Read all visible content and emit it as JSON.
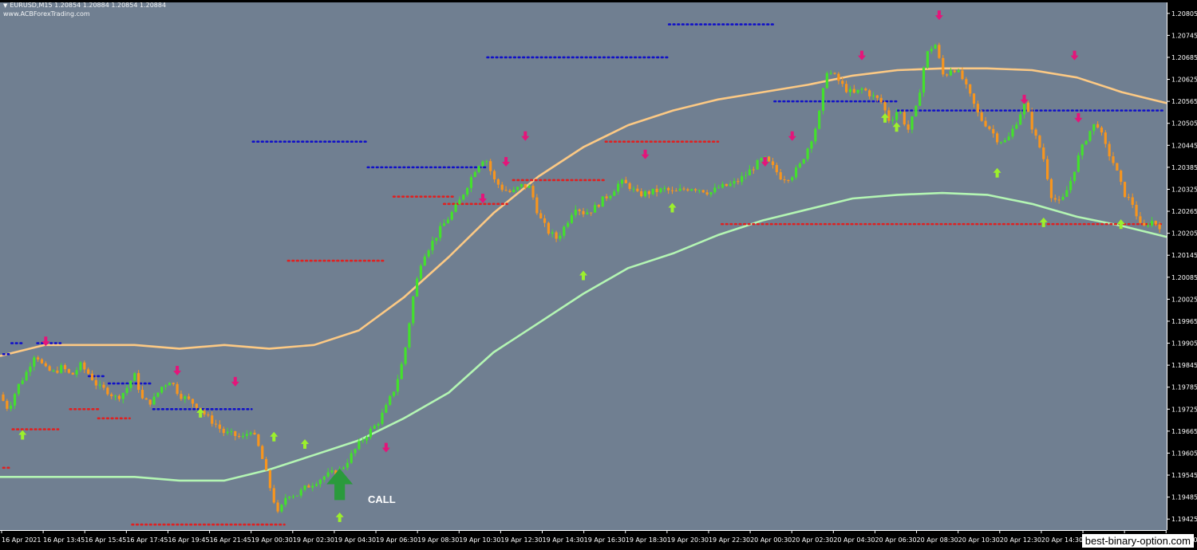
{
  "header": {
    "symbol_line": "EURUSD,M15  1.20854 1.20884 1.20854 1.20884",
    "site": "www.ACBForexTrading.com"
  },
  "signal_label": "CALL",
  "watermark": "best-binary-option.com",
  "colors": {
    "background": "#707f91",
    "axis_background": "#000000",
    "bull_candle": "#43e12c",
    "bear_candle": "#f7951e",
    "upper_band": "#fcc984",
    "lower_band": "#b3f5b3",
    "resistance_dots": "#1010c8",
    "support_dots": "#e02020",
    "sell_arrow": "#e4157a",
    "buy_arrow": "#9cf02c",
    "call_arrow": "#2a9a3c"
  },
  "icons": {
    "sell_signal": "down-arrow-icon",
    "buy_signal": "up-arrow-icon",
    "call_signal": "big-up-arrow-icon"
  },
  "chart_data": {
    "type": "candlestick",
    "symbol": "EURUSD",
    "timeframe": "M15",
    "ylim": [
      1.19395,
      1.20835
    ],
    "y_ticks": [
      "1.20805",
      "1.20745",
      "1.20685",
      "1.20625",
      "1.20565",
      "1.20505",
      "1.20445",
      "1.20385",
      "1.20325",
      "1.20265",
      "1.20205",
      "1.20145",
      "1.20085",
      "1.20025",
      "1.19965",
      "1.19905",
      "1.19845",
      "1.19785",
      "1.19725",
      "1.19665",
      "1.19605",
      "1.19545",
      "1.19485",
      "1.19425"
    ],
    "x_ticks": [
      "16 Apr 2021",
      "16 Apr 13:45",
      "16 Apr 15:45",
      "16 Apr 17:45",
      "16 Apr 19:45",
      "16 Apr 21:45",
      "19 Apr 00:30",
      "19 Apr 02:30",
      "19 Apr 04:30",
      "19 Apr 06:30",
      "19 Apr 08:30",
      "19 Apr 10:30",
      "19 Apr 12:30",
      "19 Apr 14:30",
      "19 Apr 16:30",
      "19 Apr 18:30",
      "19 Apr 20:30",
      "19 Apr 22:30",
      "20 Apr 00:30",
      "20 Apr 02:30",
      "20 Apr 04:30",
      "20 Apr 06:30",
      "20 Apr 08:30",
      "20 Apr 10:30",
      "20 Apr 12:30",
      "20 Apr 14:30",
      "20 Apr 16:30",
      "20 Apr 18:30",
      "20 Apr 20:3"
    ],
    "close_path": [
      1.19765,
      1.19725,
      1.19785,
      1.19825,
      1.1988,
      1.19835,
      1.19825,
      1.1984,
      1.19815,
      1.19845,
      1.1982,
      1.19785,
      1.19775,
      1.19755,
      1.19775,
      1.1982,
      1.19745,
      1.19745,
      1.19785,
      1.19805,
      1.19765,
      1.1975,
      1.19735,
      1.19705,
      1.19685,
      1.1966,
      1.19655,
      1.19645,
      1.1967,
      1.1961,
      1.1952,
      1.19435,
      1.19495,
      1.1949,
      1.1951,
      1.19525,
      1.1954,
      1.1955,
      1.1956,
      1.19595,
      1.1963,
      1.1966,
      1.19685,
      1.1973,
      1.19785,
      1.1987,
      1.2003,
      1.2014,
      1.20175,
      1.20215,
      1.2025,
      1.20285,
      1.20335,
      1.20385,
      1.20415,
      1.2035,
      1.20325,
      1.20315,
      1.20335,
      1.2033,
      1.2025,
      1.2021,
      1.2019,
      1.2023,
      1.2028,
      1.2026,
      1.2027,
      1.20295,
      1.20315,
      1.20345,
      1.20335,
      1.2031,
      1.20315,
      1.2032,
      1.20325,
      1.20315,
      1.20325,
      1.2033,
      1.20325,
      1.20315,
      1.2033,
      1.20335,
      1.20345,
      1.20365,
      1.2039,
      1.2041,
      1.20385,
      1.20355,
      1.2036,
      1.2039,
      1.20445,
      1.2051,
      1.2065,
      1.2063,
      1.206,
      1.20585,
      1.206,
      1.2058,
      1.20565,
      1.2051,
      1.20545,
      1.20485,
      1.2055,
      1.2069,
      1.20725,
      1.2063,
      1.2066,
      1.2063,
      1.20575,
      1.2052,
      1.20495,
      1.2046,
      1.20455,
      1.20505,
      1.2056,
      1.2048,
      1.2042,
      1.20305,
      1.20285,
      1.2034,
      1.20415,
      1.20475,
      1.2051,
      1.2044,
      1.2039,
      1.20315,
      1.20285,
      1.20215,
      1.2024,
      1.20225
    ],
    "resistance_levels": [
      {
        "from": 0,
        "to": 5,
        "value": 1.19875
      },
      {
        "from": 7,
        "to": 17,
        "value": 1.19905
      },
      {
        "from": 29,
        "to": 49,
        "value": 1.19905
      },
      {
        "from": 73,
        "to": 87,
        "value": 1.19815
      },
      {
        "from": 90,
        "to": 127,
        "value": 1.19795
      },
      {
        "from": 128,
        "to": 212,
        "value": 1.19725
      },
      {
        "from": 213,
        "to": 310,
        "value": 1.20455
      },
      {
        "from": 311,
        "to": 412,
        "value": 1.20385
      },
      {
        "from": 413,
        "to": 567,
        "value": 1.20685
      },
      {
        "from": 568,
        "to": 657,
        "value": 1.20775
      },
      {
        "from": 658,
        "to": 762,
        "value": 1.20565
      },
      {
        "from": 763,
        "to": 999,
        "value": 1.2054
      }
    ],
    "support_levels": [
      {
        "from": 0,
        "to": 5,
        "value": 1.19565
      },
      {
        "from": 8,
        "to": 47,
        "value": 1.1967
      },
      {
        "from": 57,
        "to": 81,
        "value": 1.19725
      },
      {
        "from": 81,
        "to": 108,
        "value": 1.197
      },
      {
        "from": 110,
        "to": 240,
        "value": 1.1941
      },
      {
        "from": 243,
        "to": 325,
        "value": 1.2013
      },
      {
        "from": 333,
        "to": 384,
        "value": 1.20305
      },
      {
        "from": 376,
        "to": 430,
        "value": 1.20285
      },
      {
        "from": 435,
        "to": 514,
        "value": 1.2035
      },
      {
        "from": 514,
        "to": 610,
        "value": 1.20455
      },
      {
        "from": 613,
        "to": 999,
        "value": 1.2023
      }
    ],
    "upper_band": [
      1.1987,
      1.199,
      1.199,
      1.199,
      1.1989,
      1.199,
      1.1989,
      1.199,
      1.1994,
      1.2003,
      1.2014,
      1.2026,
      1.2036,
      1.2044,
      1.205,
      1.2054,
      1.2057,
      1.2059,
      1.2061,
      1.20635,
      1.2065,
      1.20655,
      1.20655,
      1.2065,
      1.2063,
      1.2059,
      1.2056
    ],
    "lower_band": [
      1.1954,
      1.1954,
      1.1954,
      1.1954,
      1.1953,
      1.1953,
      1.1956,
      1.196,
      1.1964,
      1.197,
      1.1977,
      1.1988,
      1.1996,
      1.2004,
      1.2011,
      1.2015,
      1.202,
      1.2024,
      1.2027,
      1.203,
      1.2031,
      1.20315,
      1.2031,
      1.20285,
      1.2025,
      1.20225,
      1.20195
    ],
    "sell_signals": [
      {
        "bar": 11,
        "value": 1.1991
      },
      {
        "bar": 45,
        "value": 1.1983
      },
      {
        "bar": 60,
        "value": 1.198
      },
      {
        "bar": 99,
        "value": 1.1962
      },
      {
        "bar": 124,
        "value": 1.203
      },
      {
        "bar": 130,
        "value": 1.204
      },
      {
        "bar": 135,
        "value": 1.2047
      },
      {
        "bar": 166,
        "value": 1.2042
      },
      {
        "bar": 197,
        "value": 1.204
      },
      {
        "bar": 204,
        "value": 1.2047
      },
      {
        "bar": 222,
        "value": 1.2069
      },
      {
        "bar": 242,
        "value": 1.208
      },
      {
        "bar": 277,
        "value": 1.2069
      },
      {
        "bar": 264,
        "value": 1.2057
      },
      {
        "bar": 278,
        "value": 1.2052
      }
    ],
    "buy_signals": [
      {
        "bar": 5,
        "value": 1.19655
      },
      {
        "bar": 51,
        "value": 1.19715
      },
      {
        "bar": 70,
        "value": 1.1965
      },
      {
        "bar": 78,
        "value": 1.1963
      },
      {
        "bar": 87,
        "value": 1.1943
      },
      {
        "bar": 150,
        "value": 1.2009
      },
      {
        "bar": 173,
        "value": 1.20275
      },
      {
        "bar": 228,
        "value": 1.2052
      },
      {
        "bar": 231,
        "value": 1.20495
      },
      {
        "bar": 257,
        "value": 1.2037
      },
      {
        "bar": 269,
        "value": 1.20235
      },
      {
        "bar": 289,
        "value": 1.2023
      }
    ],
    "call_signal": {
      "bar": 87,
      "value": 1.1952
    }
  }
}
